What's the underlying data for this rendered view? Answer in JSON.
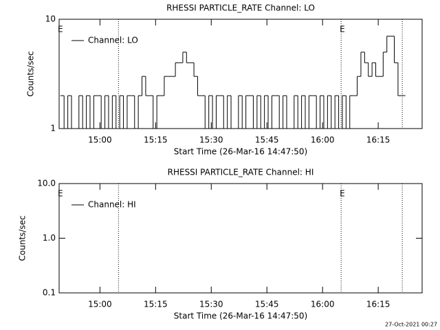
{
  "chart_data": [
    {
      "type": "line",
      "title": "RHESSI PARTICLE_RATE Channel: LO",
      "xlabel": "Start Time (26-Mar-16 14:47:50)",
      "ylabel": "Counts/sec",
      "log_y": true,
      "xlim": [
        70,
        5940
      ],
      "ylim": [
        1,
        10
      ],
      "yticks": [
        1,
        10
      ],
      "xticks": [
        {
          "value": 730,
          "label": "15:00"
        },
        {
          "value": 1630,
          "label": "15:15"
        },
        {
          "value": 2530,
          "label": "15:30"
        },
        {
          "value": 3430,
          "label": "15:45"
        },
        {
          "value": 4330,
          "label": "16:00"
        },
        {
          "value": 5230,
          "label": "16:15"
        }
      ],
      "vlines": [
        1030,
        4630,
        5619
      ],
      "annotations": [
        {
          "text": "E",
          "x": 70
        },
        {
          "text": "E",
          "x": 4630
        }
      ],
      "legend": "upper left",
      "series": [
        {
          "name": "Channel: LO",
          "color": "#000000",
          "x": [
            120,
            180,
            240,
            300,
            360,
            420,
            480,
            540,
            600,
            660,
            720,
            780,
            840,
            900,
            960,
            1020,
            1080,
            1140,
            1200,
            1260,
            1320,
            1380,
            1440,
            1500,
            1560,
            1620,
            1680,
            1740,
            1800,
            1860,
            1920,
            1980,
            2040,
            2100,
            2160,
            2220,
            2280,
            2340,
            2400,
            2460,
            2520,
            2580,
            2640,
            2700,
            2760,
            2820,
            2880,
            2940,
            3000,
            3060,
            3120,
            3180,
            3240,
            3300,
            3360,
            3420,
            3480,
            3540,
            3600,
            3660,
            3720,
            3780,
            3840,
            3900,
            3960,
            4020,
            4080,
            4140,
            4200,
            4260,
            4320,
            4380,
            4440,
            4500,
            4560,
            4620,
            4680,
            4740,
            4800,
            4860,
            4920,
            4980,
            5040,
            5100,
            5160,
            5220,
            5280,
            5340,
            5400,
            5460,
            5520,
            5580,
            5640
          ],
          "values": [
            2,
            1,
            2,
            1,
            1,
            2,
            1,
            2,
            1,
            2,
            2,
            1,
            2,
            1,
            2,
            1,
            2,
            1,
            2,
            2,
            1,
            2,
            3,
            2,
            2,
            1,
            2,
            2,
            3,
            3,
            3,
            4,
            4,
            5,
            4,
            4,
            3,
            2,
            2,
            1,
            2,
            1,
            2,
            2,
            1,
            2,
            1,
            1,
            2,
            1,
            2,
            2,
            1,
            2,
            1,
            2,
            1,
            2,
            2,
            1,
            2,
            1,
            1,
            2,
            1,
            2,
            1,
            2,
            2,
            1,
            2,
            1,
            2,
            1,
            2,
            1,
            2,
            1,
            2,
            2,
            3,
            5,
            4,
            3,
            4,
            3,
            3,
            5,
            7,
            7,
            4,
            2,
            2
          ]
        }
      ]
    },
    {
      "type": "line",
      "title": "RHESSI PARTICLE_RATE Channel: HI",
      "xlabel": "Start Time (26-Mar-16 14:47:50)",
      "ylabel": "Counts/sec",
      "log_y": true,
      "xlim": [
        70,
        5940
      ],
      "ylim": [
        0.1,
        10
      ],
      "yticks": [
        0.1,
        {
          "value": 1,
          "label": "1.0"
        },
        {
          "value": 10,
          "label": "10.0"
        }
      ],
      "xticks": [
        {
          "value": 730,
          "label": "15:00"
        },
        {
          "value": 1630,
          "label": "15:15"
        },
        {
          "value": 2530,
          "label": "15:30"
        },
        {
          "value": 3430,
          "label": "15:45"
        },
        {
          "value": 4330,
          "label": "16:00"
        },
        {
          "value": 5230,
          "label": "16:15"
        }
      ],
      "vlines": [
        1030,
        4630,
        5619
      ],
      "annotations": [
        {
          "text": "E",
          "x": 70
        },
        {
          "text": "E",
          "x": 4630
        }
      ],
      "legend": "upper left",
      "series": [
        {
          "name": "Channel: HI",
          "color": "#000000",
          "x": [],
          "values": []
        }
      ]
    }
  ],
  "footer": "27-Oct-2021 00:27"
}
